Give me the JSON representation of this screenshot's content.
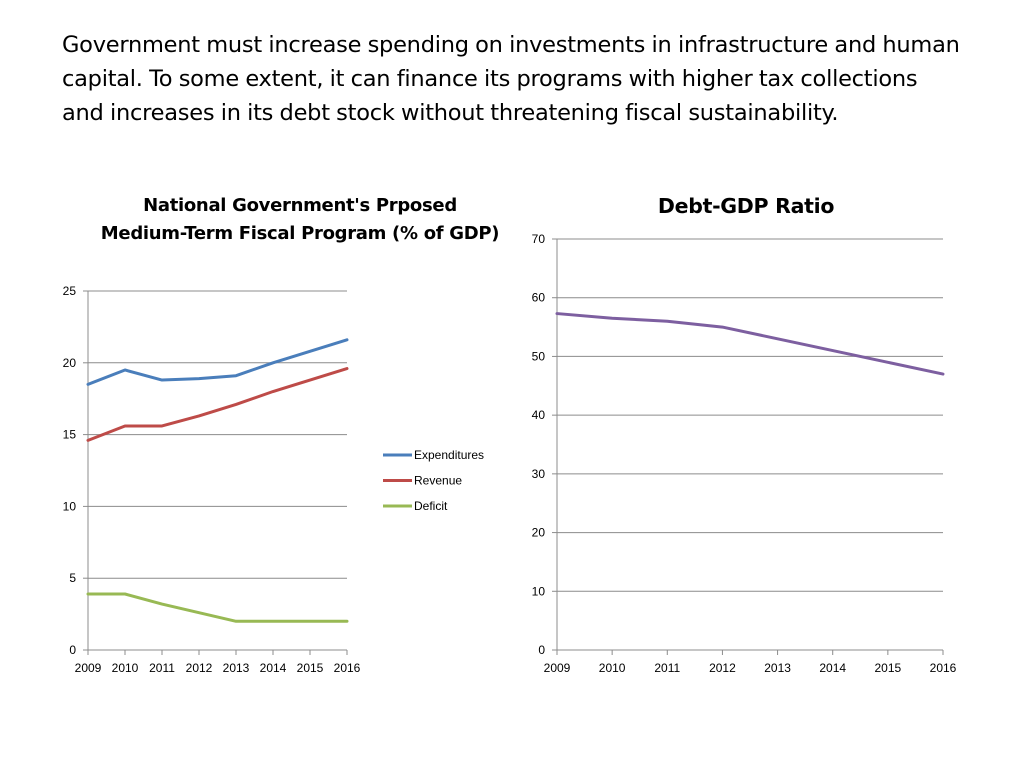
{
  "intro_text": "Government must increase spending on investments in infrastructure and human capital.  To some extent, it can finance its programs with higher tax collections and increases in its debt stock without threatening fiscal sustainability.",
  "chart_data": [
    {
      "type": "line",
      "title": "National Government's Prposed Medium-Term Fiscal Program (% of GDP)",
      "xlabel": "",
      "ylabel": "",
      "x": [
        "2009",
        "2010",
        "2011",
        "2012",
        "2013",
        "2014",
        "2015",
        "2016"
      ],
      "ylim": [
        0,
        25
      ],
      "yticks": [
        0,
        5,
        10,
        15,
        20,
        25
      ],
      "grid": true,
      "legend_position": "right",
      "series": [
        {
          "name": "Expenditures",
          "color": "#4a7ebb",
          "values": [
            18.5,
            19.5,
            18.8,
            18.9,
            19.1,
            20.0,
            20.8,
            21.6
          ]
        },
        {
          "name": "Revenue",
          "color": "#be4b48",
          "values": [
            14.6,
            15.6,
            15.6,
            16.3,
            17.1,
            18.0,
            18.8,
            19.6
          ]
        },
        {
          "name": "Deficit",
          "color": "#98b954",
          "values": [
            3.9,
            3.9,
            3.2,
            2.6,
            2.0,
            2.0,
            2.0,
            2.0
          ]
        }
      ]
    },
    {
      "type": "line",
      "title": "Debt-GDP Ratio",
      "xlabel": "",
      "ylabel": "",
      "x": [
        "2009",
        "2010",
        "2011",
        "2012",
        "2013",
        "2014",
        "2015",
        "2016"
      ],
      "ylim": [
        0,
        70
      ],
      "yticks": [
        0,
        10,
        20,
        30,
        40,
        50,
        60,
        70
      ],
      "grid": true,
      "legend_position": "none",
      "series": [
        {
          "color": "#7d5fa0",
          "values": [
            57.3,
            56.5,
            56.0,
            55.0,
            53.0,
            51.0,
            49.0,
            47.0
          ]
        }
      ]
    }
  ]
}
